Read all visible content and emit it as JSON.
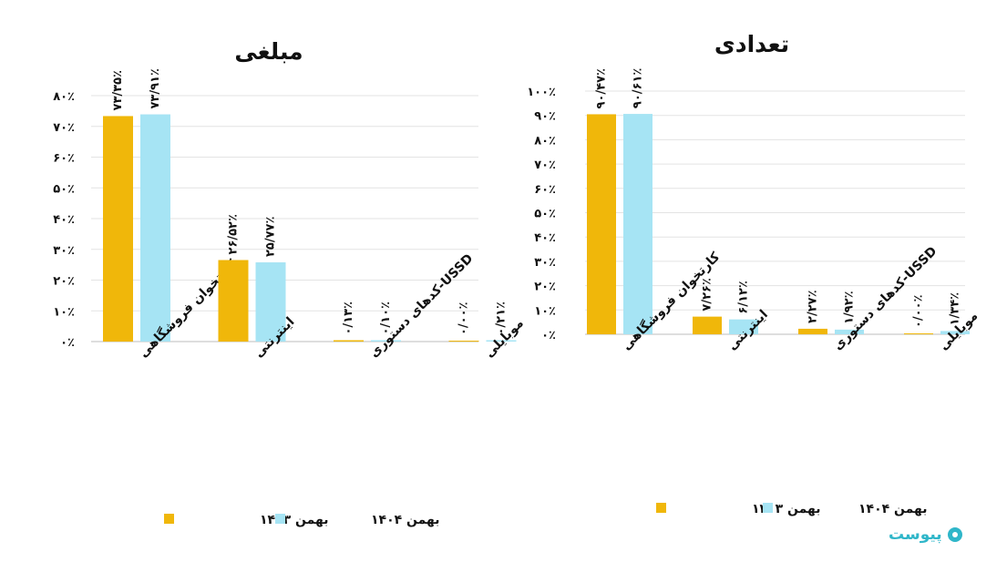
{
  "colors": {
    "series_1403": "#f0b70a",
    "series_1404": "#a6e4f4"
  },
  "logo": {
    "text": "پیوست"
  },
  "chart_data": [
    {
      "id": "amount",
      "type": "bar",
      "title": "مبلغی",
      "categories": [
        "کارتخوان فروشگاهی",
        "اینترنتی",
        "USSD-کدهای دستوری",
        "موبایلی"
      ],
      "series": [
        {
          "name": "بهمن ۱۴۰۳",
          "values": [
            73.35,
            26.52,
            0.13,
            0.0
          ],
          "labels": [
            "۷۳/۳۵٪",
            "۲۶/۵۲٪",
            "۰/۱۳٪",
            "۰/۰۰٪"
          ]
        },
        {
          "name": "بهمن ۱۴۰۴",
          "values": [
            73.91,
            25.77,
            0.1,
            0.21
          ],
          "labels": [
            "۷۳/۹۱٪",
            "۲۵/۷۷٪",
            "۰/۱۰٪",
            "۰/۲۱٪"
          ]
        }
      ],
      "yticks": [
        "۰٪",
        "۱۰٪",
        "۲۰٪",
        "۳۰٪",
        "۴۰٪",
        "۵۰٪",
        "۶۰٪",
        "۷۰٪",
        "۸۰٪"
      ],
      "ylim": [
        0,
        80
      ],
      "grid": true,
      "legend": "bottom"
    },
    {
      "id": "count",
      "type": "bar",
      "title": "تعدادی",
      "categories": [
        "کارتخوان فروشگاهی",
        "اینترنتی",
        "USSD-کدهای دستوری",
        "موبایلی"
      ],
      "series": [
        {
          "name": "بهمن ۱۴۰۳",
          "values": [
            90.47,
            7.26,
            2.27,
            0.0
          ],
          "labels": [
            "۹۰/۴۷٪",
            "۷/۲۶٪",
            "۲/۲۷٪",
            "۰/۰۰٪"
          ]
        },
        {
          "name": "بهمن ۱۴۰۴",
          "values": [
            90.61,
            6.12,
            1.92,
            1.34
          ],
          "labels": [
            "۹۰/۶۱٪",
            "۶/۱۲٪",
            "۱/۹۲٪",
            "۱/۳۴٪"
          ]
        }
      ],
      "yticks": [
        "۰٪",
        "۱۰٪",
        "۲۰٪",
        "۳۰٪",
        "۴۰٪",
        "۵۰٪",
        "۶۰٪",
        "۷۰٪",
        "۸۰٪",
        "۹۰٪",
        "۱۰۰٪"
      ],
      "ylim": [
        0,
        100
      ],
      "grid": true,
      "legend": "bottom"
    }
  ]
}
